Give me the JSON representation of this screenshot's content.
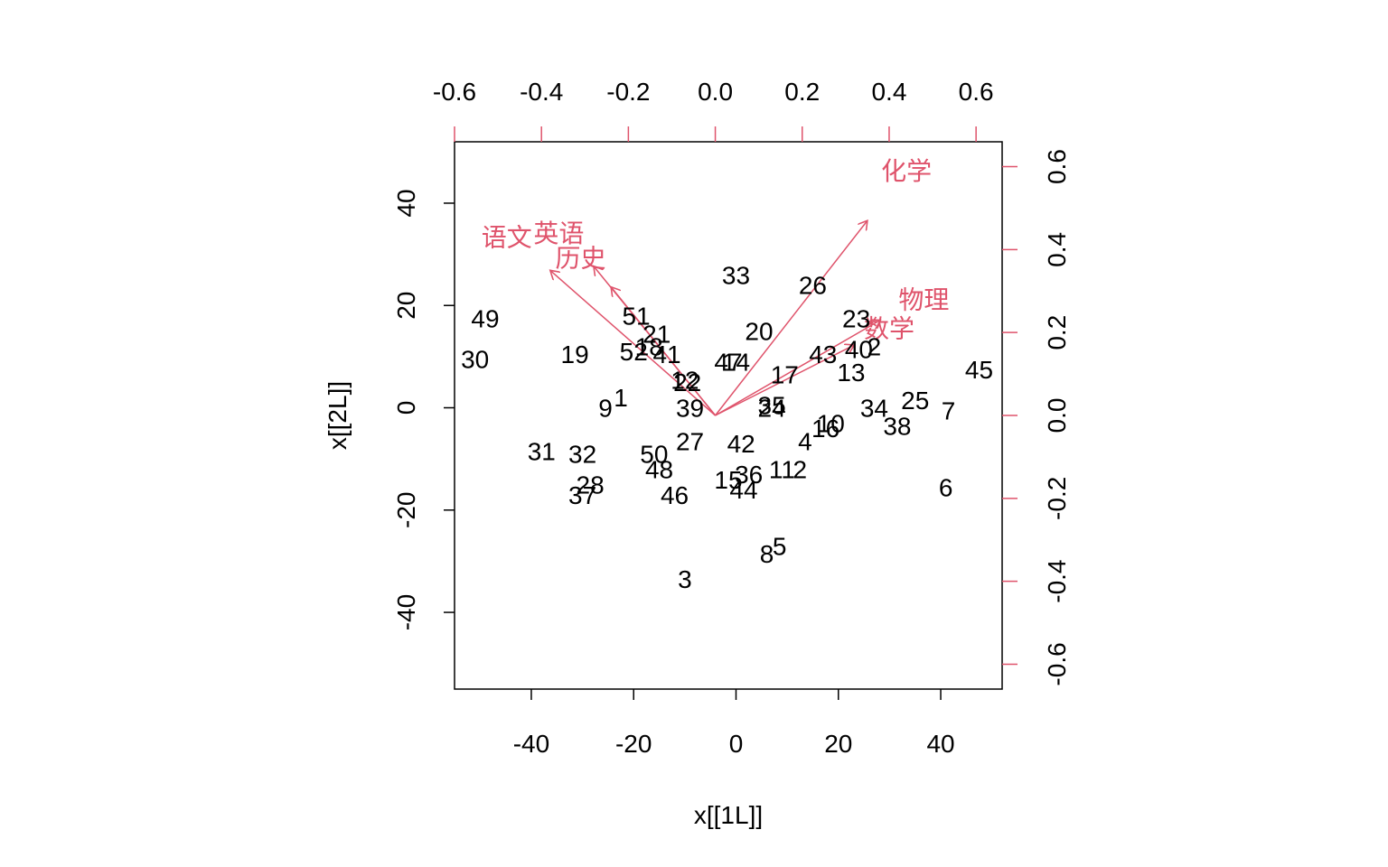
{
  "chart_data": {
    "type": "scatter",
    "subtype": "biplot",
    "xlabel": "x[[1L]]",
    "ylabel": "x[[2L]]",
    "xlim": [
      -55,
      52
    ],
    "ylim": [
      -55,
      52
    ],
    "x_ticks": [
      -40,
      -20,
      0,
      20,
      40
    ],
    "y_ticks": [
      -40,
      -20,
      0,
      20,
      40
    ],
    "x_tick_labels": [
      "-40",
      "-20",
      "0",
      "20",
      "40"
    ],
    "y_tick_labels": [
      "-40",
      "-20",
      "0",
      "20",
      "40"
    ],
    "loading_xlim": [
      -0.6,
      0.66
    ],
    "loading_ylim": [
      -0.66,
      0.66
    ],
    "top_ticks": [
      -0.6,
      -0.4,
      -0.2,
      0.0,
      0.2,
      0.4,
      0.6
    ],
    "right_ticks": [
      -0.6,
      -0.4,
      -0.2,
      0.0,
      0.2,
      0.4,
      0.6
    ],
    "top_tick_labels": [
      "-0.6",
      "-0.4",
      "-0.2",
      "0.0",
      "0.2",
      "0.4",
      "0.6"
    ],
    "right_tick_labels": [
      "-0.6",
      "-0.4",
      "-0.2",
      "0.0",
      "0.2",
      "0.4",
      "0.6"
    ],
    "loading_color": "#DF536B",
    "points": [
      {
        "label": "49",
        "x": -49,
        "y": 17.5
      },
      {
        "label": "30",
        "x": -51,
        "y": 9.5
      },
      {
        "label": "19",
        "x": -31.5,
        "y": 10.5
      },
      {
        "label": "51",
        "x": -19.5,
        "y": 18
      },
      {
        "label": "21",
        "x": -15.5,
        "y": 14.5
      },
      {
        "label": "52",
        "x": -20,
        "y": 11
      },
      {
        "label": "18",
        "x": -17,
        "y": 12
      },
      {
        "label": "41",
        "x": -13.5,
        "y": 10.5
      },
      {
        "label": "12",
        "x": -10,
        "y": 5.5
      },
      {
        "label": "22",
        "x": -9.5,
        "y": 5
      },
      {
        "label": "1",
        "x": -22.5,
        "y": 2
      },
      {
        "label": "9",
        "x": -25.5,
        "y": 0
      },
      {
        "label": "39",
        "x": -9,
        "y": 0
      },
      {
        "label": "47",
        "x": -1.5,
        "y": 9
      },
      {
        "label": "14",
        "x": 0,
        "y": 9
      },
      {
        "label": "33",
        "x": 0,
        "y": 26
      },
      {
        "label": "20",
        "x": 4.5,
        "y": 15
      },
      {
        "label": "26",
        "x": 15,
        "y": 24
      },
      {
        "label": "17",
        "x": 9.5,
        "y": 6.5
      },
      {
        "label": "35",
        "x": 7,
        "y": 0.5
      },
      {
        "label": "24",
        "x": 7,
        "y": 0
      },
      {
        "label": "23",
        "x": 23.5,
        "y": 17.5
      },
      {
        "label": "43",
        "x": 17,
        "y": 10.5
      },
      {
        "label": "40",
        "x": 24,
        "y": 11.5
      },
      {
        "label": "2",
        "x": 27,
        "y": 12
      },
      {
        "label": "13",
        "x": 22.5,
        "y": 7
      },
      {
        "label": "45",
        "x": 47.5,
        "y": 7.5
      },
      {
        "label": "34",
        "x": 27,
        "y": 0
      },
      {
        "label": "25",
        "x": 35,
        "y": 1.5
      },
      {
        "label": "7",
        "x": 41.5,
        "y": -0.5
      },
      {
        "label": "38",
        "x": 31.5,
        "y": -3.5
      },
      {
        "label": "10",
        "x": 18.5,
        "y": -3
      },
      {
        "label": "16",
        "x": 17.5,
        "y": -4
      },
      {
        "label": "4",
        "x": 13.5,
        "y": -6.5
      },
      {
        "label": "42",
        "x": 1,
        "y": -7
      },
      {
        "label": "27",
        "x": -9,
        "y": -6.5
      },
      {
        "label": "50",
        "x": -16,
        "y": -9
      },
      {
        "label": "48",
        "x": -15,
        "y": -12
      },
      {
        "label": "31",
        "x": -38,
        "y": -8.5
      },
      {
        "label": "32",
        "x": -30,
        "y": -9
      },
      {
        "label": "28",
        "x": -28.5,
        "y": -15
      },
      {
        "label": "37",
        "x": -30,
        "y": -17
      },
      {
        "label": "46",
        "x": -12,
        "y": -17
      },
      {
        "label": "15",
        "x": -1.5,
        "y": -14
      },
      {
        "label": "36",
        "x": 2.5,
        "y": -13
      },
      {
        "label": "44",
        "x": 1.5,
        "y": -16
      },
      {
        "label": "11",
        "x": 9,
        "y": -12
      },
      {
        "label": "2",
        "x": 12.5,
        "y": -12
      },
      {
        "label": "6",
        "x": 41,
        "y": -15.5
      },
      {
        "label": "5",
        "x": 8.5,
        "y": -27
      },
      {
        "label": "8",
        "x": 6,
        "y": -28.5
      },
      {
        "label": "3",
        "x": -10,
        "y": -33.5
      }
    ],
    "loadings": [
      {
        "name": "语文",
        "x": -0.38,
        "y": 0.35,
        "label_x": -0.48,
        "label_y": 0.43
      },
      {
        "name": "英语",
        "x": -0.28,
        "y": 0.36,
        "label_x": -0.36,
        "label_y": 0.44
      },
      {
        "name": "历史",
        "x": -0.24,
        "y": 0.31,
        "label_x": -0.31,
        "label_y": 0.38
      },
      {
        "name": "化学",
        "x": 0.35,
        "y": 0.47,
        "label_x": 0.44,
        "label_y": 0.59
      },
      {
        "name": "物理",
        "x": 0.38,
        "y": 0.23,
        "label_x": 0.48,
        "label_y": 0.28
      },
      {
        "name": "数学",
        "x": 0.32,
        "y": 0.17,
        "label_x": 0.4,
        "label_y": 0.21
      }
    ]
  }
}
